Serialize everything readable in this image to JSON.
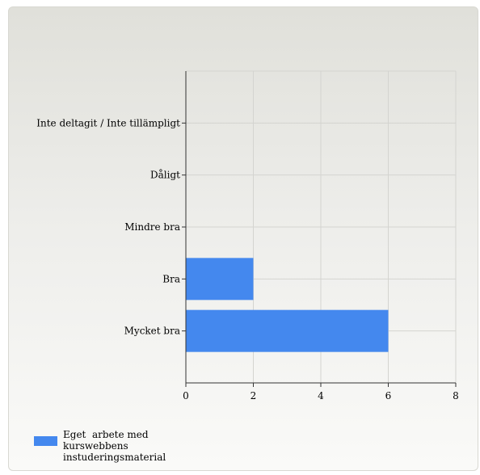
{
  "chart_data": {
    "type": "bar",
    "orientation": "horizontal",
    "categories": [
      "Inte deltagit / Inte tillämpligt",
      "Dåligt",
      "Mindre bra",
      "Bra",
      "Mycket bra"
    ],
    "series": [
      {
        "name": "Eget  arbete med kurswebbens instuderingsmaterial",
        "values": [
          0,
          0,
          0,
          2,
          6
        ],
        "color": "#4488ee"
      }
    ],
    "xlim": [
      0,
      8
    ],
    "xticks": [
      "0",
      "2",
      "4",
      "6",
      "8"
    ],
    "grid": true,
    "legend_position": "bottom-left",
    "title": "",
    "xlabel": "",
    "ylabel": ""
  }
}
